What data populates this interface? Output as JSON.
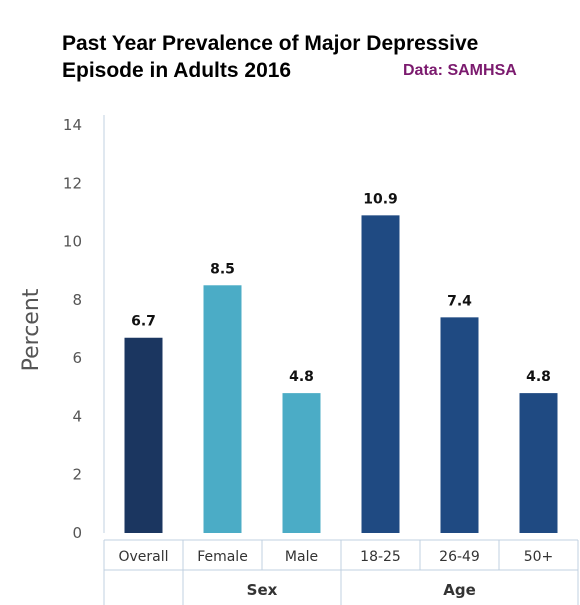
{
  "header": {
    "title_line1": "Past Year Prevalence of Major Depressive",
    "title_line2": "Episode in Adults 2016",
    "source": "Data: SAMHSA"
  },
  "chart_data": {
    "type": "bar",
    "title": "Past Year Prevalence of Major Depressive Episode in Adults 2016",
    "ylabel": "Percent",
    "xlabel": "",
    "ylim": [
      0,
      14
    ],
    "yticks": [
      0,
      2,
      4,
      6,
      8,
      10,
      12,
      14
    ],
    "grid": false,
    "categories": [
      "Overall",
      "Female",
      "Male",
      "18-25",
      "26-49",
      "50+"
    ],
    "values": [
      6.7,
      8.5,
      4.8,
      10.9,
      7.4,
      4.8
    ],
    "value_labels": [
      "6.7",
      "8.5",
      "4.8",
      "10.9",
      "7.4",
      "4.8"
    ],
    "bar_colors": [
      "#1b3660",
      "#4bacc6",
      "#4bacc6",
      "#1f4a82",
      "#1f4a82",
      "#1f4a82"
    ],
    "groups": [
      {
        "label": "Sex",
        "categories": [
          "Female",
          "Male"
        ]
      },
      {
        "label": "Age",
        "categories": [
          "18-25",
          "26-49",
          "50+"
        ]
      }
    ],
    "axis_color": "#c0d0e0"
  }
}
